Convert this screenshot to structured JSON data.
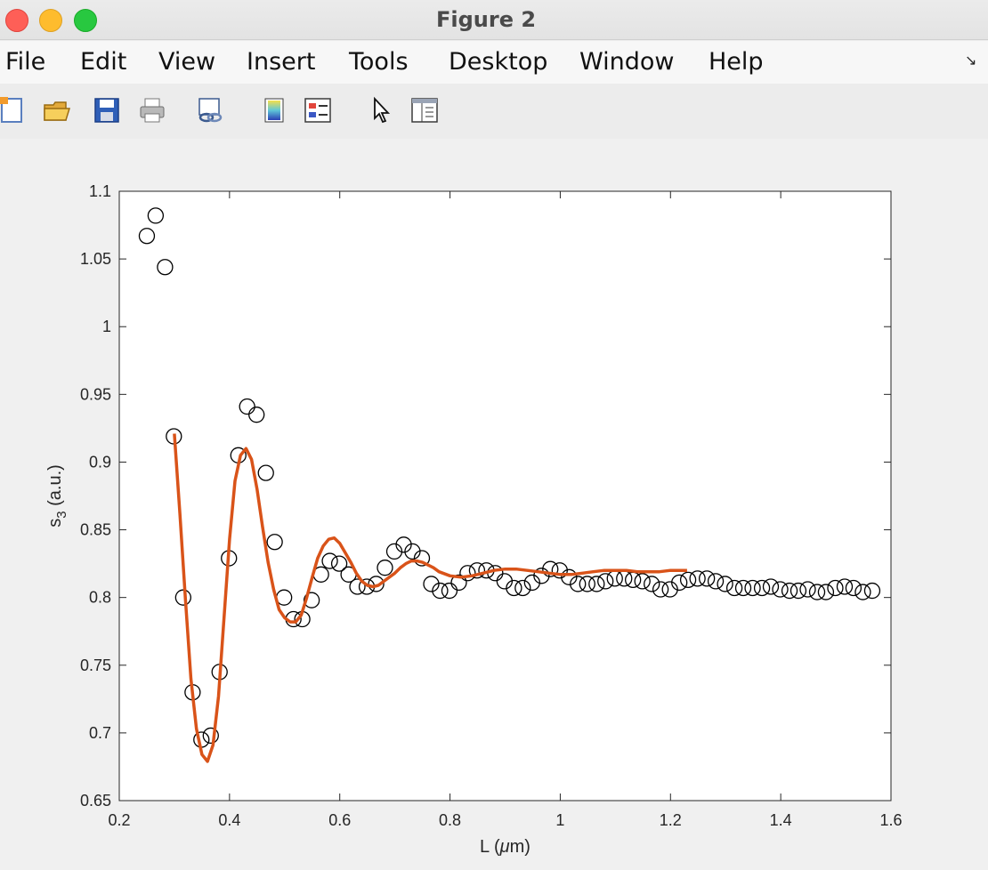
{
  "window": {
    "title": "Figure 2"
  },
  "menu": {
    "items": [
      "File",
      "Edit",
      "View",
      "Insert",
      "Tools",
      "Desktop",
      "Window",
      "Help"
    ]
  },
  "toolbar": {
    "icons": [
      "new-figure-icon",
      "open-file-icon",
      "save-icon",
      "print-icon",
      "link-plot-icon",
      "colorbar-icon",
      "legend-icon",
      "edit-plot-pointer-icon",
      "property-editor-icon"
    ]
  },
  "colors": {
    "fit_line": "#d95319",
    "markers": "#000000"
  },
  "chart_data": {
    "type": "scatter",
    "xlabel_main": "L (",
    "xlabel_greek": "μ",
    "xlabel_rest": "m)",
    "ylabel_main": "s",
    "ylabel_sub": "3",
    "ylabel_rest": " (a.u.)",
    "xlim": [
      0.2,
      1.6
    ],
    "ylim": [
      0.65,
      1.1
    ],
    "xticks": [
      "0.2",
      "0.4",
      "0.6",
      "0.8",
      "1",
      "1.2",
      "1.4",
      "1.6"
    ],
    "yticks": [
      "0.65",
      "0.7",
      "0.75",
      "0.8",
      "0.85",
      "0.9",
      "0.95",
      "1",
      "1.05",
      "1.1"
    ],
    "grid": false,
    "series": [
      {
        "kind": "markers",
        "marker": "open-circle",
        "points": [
          [
            0.25,
            1.067
          ],
          [
            0.266,
            1.082
          ],
          [
            0.283,
            1.044
          ],
          [
            0.299,
            0.919
          ],
          [
            0.316,
            0.8
          ],
          [
            0.333,
            0.73
          ],
          [
            0.349,
            0.695
          ],
          [
            0.366,
            0.698
          ],
          [
            0.382,
            0.745
          ],
          [
            0.399,
            0.829
          ],
          [
            0.416,
            0.905
          ],
          [
            0.432,
            0.941
          ],
          [
            0.449,
            0.935
          ],
          [
            0.466,
            0.892
          ],
          [
            0.482,
            0.841
          ],
          [
            0.499,
            0.8
          ],
          [
            0.516,
            0.784
          ],
          [
            0.532,
            0.784
          ],
          [
            0.549,
            0.798
          ],
          [
            0.566,
            0.817
          ],
          [
            0.582,
            0.827
          ],
          [
            0.599,
            0.825
          ],
          [
            0.616,
            0.817
          ],
          [
            0.632,
            0.808
          ],
          [
            0.649,
            0.808
          ],
          [
            0.666,
            0.81
          ],
          [
            0.682,
            0.822
          ],
          [
            0.699,
            0.834
          ],
          [
            0.716,
            0.839
          ],
          [
            0.732,
            0.834
          ],
          [
            0.749,
            0.829
          ],
          [
            0.766,
            0.81
          ],
          [
            0.782,
            0.805
          ],
          [
            0.799,
            0.805
          ],
          [
            0.816,
            0.811
          ],
          [
            0.832,
            0.818
          ],
          [
            0.849,
            0.82
          ],
          [
            0.866,
            0.82
          ],
          [
            0.882,
            0.818
          ],
          [
            0.899,
            0.812
          ],
          [
            0.916,
            0.807
          ],
          [
            0.932,
            0.807
          ],
          [
            0.949,
            0.811
          ],
          [
            0.966,
            0.816
          ],
          [
            0.982,
            0.821
          ],
          [
            0.999,
            0.82
          ],
          [
            1.016,
            0.815
          ],
          [
            1.032,
            0.81
          ],
          [
            1.049,
            0.81
          ],
          [
            1.066,
            0.81
          ],
          [
            1.082,
            0.812
          ],
          [
            1.099,
            0.814
          ],
          [
            1.116,
            0.814
          ],
          [
            1.132,
            0.813
          ],
          [
            1.149,
            0.812
          ],
          [
            1.166,
            0.81
          ],
          [
            1.182,
            0.806
          ],
          [
            1.199,
            0.806
          ],
          [
            1.216,
            0.811
          ],
          [
            1.232,
            0.813
          ],
          [
            1.249,
            0.814
          ],
          [
            1.266,
            0.814
          ],
          [
            1.282,
            0.812
          ],
          [
            1.299,
            0.81
          ],
          [
            1.316,
            0.807
          ],
          [
            1.332,
            0.807
          ],
          [
            1.349,
            0.807
          ],
          [
            1.366,
            0.807
          ],
          [
            1.382,
            0.808
          ],
          [
            1.399,
            0.806
          ],
          [
            1.416,
            0.805
          ],
          [
            1.432,
            0.805
          ],
          [
            1.449,
            0.806
          ],
          [
            1.466,
            0.804
          ],
          [
            1.482,
            0.804
          ],
          [
            1.499,
            0.807
          ],
          [
            1.516,
            0.808
          ],
          [
            1.532,
            0.807
          ],
          [
            1.549,
            0.804
          ],
          [
            1.566,
            0.805
          ]
        ]
      },
      {
        "kind": "line",
        "description": "damped oscillation fit",
        "points": [
          [
            0.3,
            0.921
          ],
          [
            0.31,
            0.862
          ],
          [
            0.32,
            0.799
          ],
          [
            0.33,
            0.74
          ],
          [
            0.34,
            0.703
          ],
          [
            0.35,
            0.684
          ],
          [
            0.36,
            0.679
          ],
          [
            0.37,
            0.691
          ],
          [
            0.38,
            0.727
          ],
          [
            0.39,
            0.785
          ],
          [
            0.4,
            0.843
          ],
          [
            0.41,
            0.886
          ],
          [
            0.42,
            0.905
          ],
          [
            0.43,
            0.91
          ],
          [
            0.44,
            0.902
          ],
          [
            0.45,
            0.88
          ],
          [
            0.46,
            0.852
          ],
          [
            0.47,
            0.826
          ],
          [
            0.48,
            0.806
          ],
          [
            0.49,
            0.791
          ],
          [
            0.5,
            0.785
          ],
          [
            0.51,
            0.782
          ],
          [
            0.52,
            0.782
          ],
          [
            0.53,
            0.787
          ],
          [
            0.54,
            0.8
          ],
          [
            0.55,
            0.815
          ],
          [
            0.56,
            0.829
          ],
          [
            0.57,
            0.838
          ],
          [
            0.58,
            0.843
          ],
          [
            0.59,
            0.844
          ],
          [
            0.6,
            0.84
          ],
          [
            0.61,
            0.833
          ],
          [
            0.62,
            0.826
          ],
          [
            0.63,
            0.818
          ],
          [
            0.64,
            0.812
          ],
          [
            0.65,
            0.809
          ],
          [
            0.66,
            0.808
          ],
          [
            0.67,
            0.809
          ],
          [
            0.68,
            0.812
          ],
          [
            0.69,
            0.815
          ],
          [
            0.7,
            0.818
          ],
          [
            0.71,
            0.822
          ],
          [
            0.72,
            0.825
          ],
          [
            0.73,
            0.827
          ],
          [
            0.74,
            0.827
          ],
          [
            0.75,
            0.826
          ],
          [
            0.76,
            0.824
          ],
          [
            0.77,
            0.822
          ],
          [
            0.78,
            0.819
          ],
          [
            0.8,
            0.816
          ],
          [
            0.82,
            0.815
          ],
          [
            0.84,
            0.816
          ],
          [
            0.86,
            0.818
          ],
          [
            0.88,
            0.82
          ],
          [
            0.9,
            0.821
          ],
          [
            0.92,
            0.821
          ],
          [
            0.94,
            0.82
          ],
          [
            0.96,
            0.819
          ],
          [
            0.98,
            0.818
          ],
          [
            1.0,
            0.817
          ],
          [
            1.02,
            0.817
          ],
          [
            1.04,
            0.818
          ],
          [
            1.06,
            0.819
          ],
          [
            1.08,
            0.82
          ],
          [
            1.1,
            0.82
          ],
          [
            1.12,
            0.82
          ],
          [
            1.14,
            0.819
          ],
          [
            1.16,
            0.819
          ],
          [
            1.18,
            0.819
          ],
          [
            1.2,
            0.82
          ],
          [
            1.23,
            0.82
          ]
        ]
      }
    ]
  }
}
